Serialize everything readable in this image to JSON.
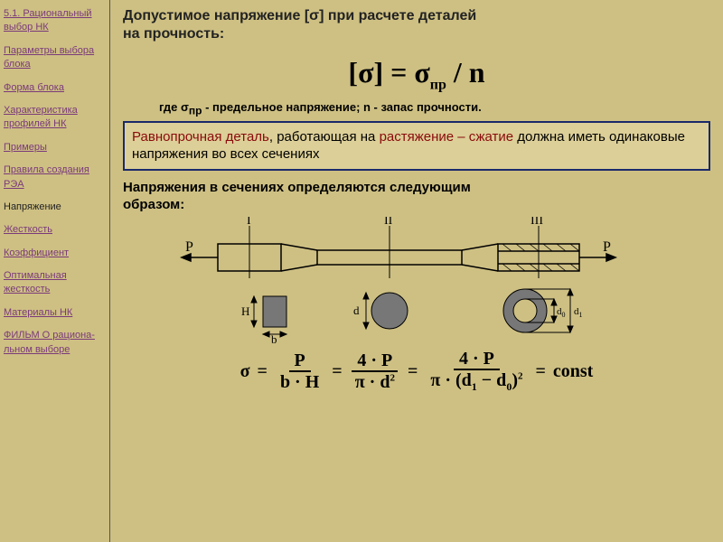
{
  "sidebar": {
    "items": [
      {
        "label": "5.1. Рациональный выбор НК",
        "active": false
      },
      {
        "label": "Параметры выбора блока",
        "active": false
      },
      {
        "label": "Форма блока",
        "active": false
      },
      {
        "label": "Характеристика профилей НК",
        "active": false
      },
      {
        "label": "Примеры",
        "active": false
      },
      {
        "label": "Правила создания РЭА",
        "active": false
      },
      {
        "label": "Напряжение",
        "active": true
      },
      {
        "label": "Жесткость",
        "active": false
      },
      {
        "label": "Коэффициент",
        "active": false
      },
      {
        "label": "Оптимальная жесткость",
        "active": false
      },
      {
        "label": "Материалы НК",
        "active": false
      },
      {
        "label": "ФИЛЬМ О рациона-льном выборе",
        "active": false
      }
    ]
  },
  "content": {
    "title_line1": "Допустимое напряжение [σ] при расчете деталей",
    "title_line2": "на прочность:",
    "formula_main": "[σ] = σ",
    "formula_main_sub": "пр",
    "formula_main_tail": " / n",
    "where": "где  σ",
    "where_sub": "пр",
    "where_tail": " - предельное напряжение; n  - запас прочности.",
    "callout_hl1": "Равнопрочная деталь",
    "callout_mid": ", работающая на ",
    "callout_hl2": "растяжение – сжатие",
    "callout_tail": " должна иметь одинаковые напряжения во всех сечениях",
    "subtitle_line1": "Напряжения в сечениях определяются следующим",
    "subtitle_line2": " образом:",
    "sigma": "σ",
    "eq": "=",
    "P": "P",
    "bH": "b · H",
    "four": "4 · P",
    "pi_d2": "π · d",
    "sq": "2",
    "denom3_a": "π · (d",
    "denom3_sub1": "1",
    "denom3_b": " − d",
    "denom3_sub0": "0",
    "denom3_c": ")",
    "const": "const",
    "diagram": {
      "labels": {
        "I": "I",
        "II": "II",
        "III": "III",
        "P": "P",
        "H": "H",
        "b": "b",
        "d": "d",
        "d0": "d0",
        "d1": "d1"
      },
      "colors": {
        "stroke": "#000000",
        "fill_section": "#777777",
        "bg": "#cec083"
      }
    }
  }
}
